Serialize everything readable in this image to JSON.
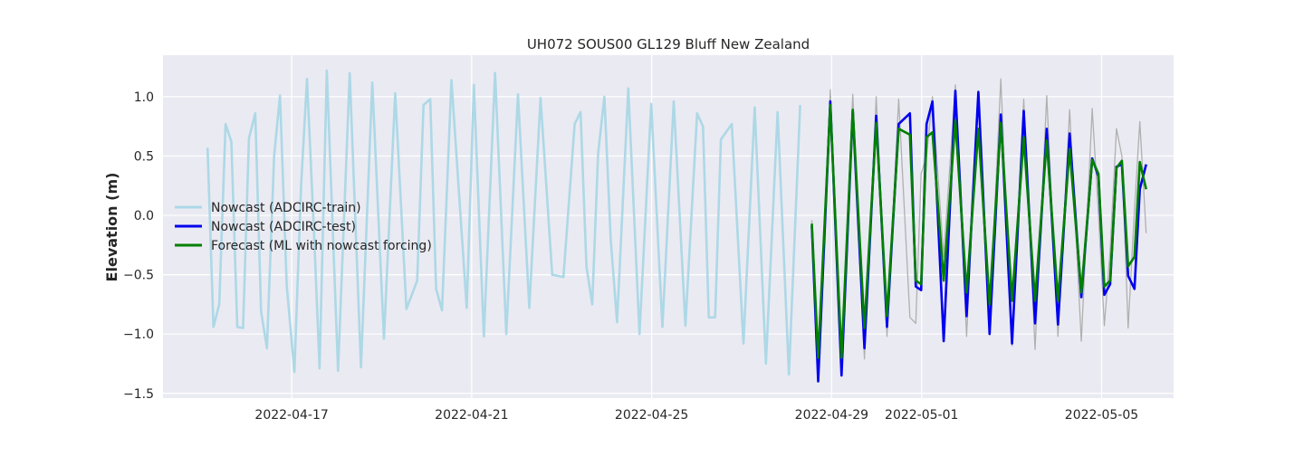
{
  "chart_data": {
    "type": "line",
    "title": "UH072 SOUS00 GL129 Bluff New Zealand",
    "xlabel": "",
    "ylabel": "Elevation (m)",
    "x_unit": "days since 2022-04-16 00:00",
    "xlim": [
      -1.86,
      20.6
    ],
    "ylim": [
      -1.54,
      1.35
    ],
    "x_ticks": [
      {
        "value": 1,
        "label": "2022-04-17"
      },
      {
        "value": 5,
        "label": "2022-04-21"
      },
      {
        "value": 9,
        "label": "2022-04-25"
      },
      {
        "value": 13,
        "label": "2022-04-29"
      },
      {
        "value": 15,
        "label": "2022-05-01"
      },
      {
        "value": 19,
        "label": "2022-05-05"
      }
    ],
    "y_ticks": [
      {
        "value": 1.0,
        "label": "1.0"
      },
      {
        "value": 0.5,
        "label": "0.5"
      },
      {
        "value": 0.0,
        "label": "0.0"
      },
      {
        "value": -0.5,
        "label": "−0.5"
      },
      {
        "value": -1.0,
        "label": "−1.0"
      },
      {
        "value": -1.5,
        "label": "−1.5"
      }
    ],
    "grid": true,
    "legend_position": "center-left",
    "legend": [
      {
        "series": "train",
        "label": "Nowcast (ADCIRC-train)"
      },
      {
        "series": "test",
        "label": "Nowcast (ADCIRC-test)"
      },
      {
        "series": "forecast",
        "label": "Forecast (ML with nowcast forcing)"
      }
    ],
    "series": [
      {
        "name": "Nowcast (ADCIRC-train)",
        "key": "train",
        "color": "#add8e6",
        "x": [
          -0.87,
          -0.74,
          -0.61,
          -0.47,
          -0.34,
          -0.21,
          -0.08,
          0.05,
          0.19,
          0.32,
          0.45,
          0.61,
          0.74,
          0.89,
          1.06,
          1.21,
          1.34,
          1.49,
          1.62,
          1.78,
          2.03,
          2.29,
          2.54,
          2.79,
          3.05,
          3.3,
          3.55,
          3.79,
          3.93,
          4.08,
          4.21,
          4.34,
          4.55,
          4.89,
          5.05,
          5.27,
          5.52,
          5.77,
          6.03,
          6.28,
          6.53,
          6.79,
          7.04,
          7.29,
          7.42,
          7.55,
          7.68,
          7.81,
          7.95,
          8.09,
          8.23,
          8.48,
          8.73,
          8.99,
          9.24,
          9.49,
          9.75,
          10.01,
          10.14,
          10.27,
          10.41,
          10.54,
          10.78,
          11.04,
          11.29,
          11.54,
          11.8,
          12.05,
          12.3
        ],
        "values": [
          0.57,
          -0.94,
          -0.75,
          0.77,
          0.62,
          -0.94,
          -0.95,
          0.65,
          0.86,
          -0.81,
          -1.12,
          0.5,
          1.01,
          -0.59,
          -1.32,
          0.25,
          1.15,
          -0.1,
          -1.29,
          1.22,
          -1.31,
          1.2,
          -1.28,
          1.12,
          -1.04,
          1.03,
          -0.79,
          -0.55,
          0.93,
          0.98,
          -0.62,
          -0.8,
          1.14,
          -0.78,
          1.1,
          -1.02,
          1.2,
          -1.0,
          1.02,
          -0.78,
          0.99,
          -0.5,
          -0.52,
          0.77,
          0.87,
          -0.43,
          -0.75,
          0.52,
          1.0,
          -0.2,
          -0.9,
          1.07,
          -1.0,
          0.94,
          -0.94,
          0.96,
          -0.93,
          0.86,
          0.75,
          -0.86,
          -0.86,
          0.64,
          0.77,
          -1.08,
          0.91,
          -1.25,
          0.87,
          -1.34,
          0.93
        ]
      },
      {
        "name": "Nowcast (ADCIRC-test)",
        "key": "test",
        "color": "#0000ee",
        "x": [
          12.56,
          12.7,
          12.97,
          13.22,
          13.47,
          13.73,
          13.99,
          14.23,
          14.49,
          14.74,
          14.87,
          14.99,
          15.11,
          15.24,
          15.49,
          15.75,
          16.0,
          16.26,
          16.51,
          16.76,
          17.01,
          17.27,
          17.52,
          17.78,
          18.03,
          18.29,
          18.55,
          18.79,
          18.93,
          19.06,
          19.19,
          19.33,
          19.45,
          19.59,
          19.73,
          19.85,
          19.99
        ],
        "values": [
          -0.09,
          -1.4,
          0.96,
          -1.35,
          0.88,
          -1.12,
          0.84,
          -0.94,
          0.77,
          0.86,
          -0.6,
          -0.63,
          0.77,
          0.96,
          -1.06,
          1.05,
          -0.85,
          1.04,
          -1.0,
          0.85,
          -1.08,
          0.88,
          -0.91,
          0.73,
          -0.92,
          0.69,
          -0.69,
          0.48,
          0.33,
          -0.67,
          -0.58,
          0.41,
          0.43,
          -0.51,
          -0.62,
          0.22,
          0.43
        ]
      },
      {
        "name": "Forecast (ML with nowcast forcing)",
        "key": "forecast",
        "color": "#008000",
        "x": [
          12.56,
          12.7,
          12.97,
          13.22,
          13.47,
          13.73,
          13.99,
          14.23,
          14.49,
          14.74,
          14.87,
          14.99,
          15.11,
          15.24,
          15.49,
          15.75,
          16.0,
          16.26,
          16.51,
          16.76,
          17.01,
          17.27,
          17.52,
          17.78,
          18.03,
          18.29,
          18.55,
          18.79,
          18.93,
          19.06,
          19.19,
          19.33,
          19.45,
          19.59,
          19.73,
          19.85,
          19.99
        ],
        "values": [
          -0.07,
          -1.2,
          0.93,
          -1.2,
          0.89,
          -0.95,
          0.78,
          -0.85,
          0.73,
          0.68,
          -0.55,
          -0.58,
          0.66,
          0.7,
          -0.55,
          0.8,
          -0.65,
          0.73,
          -0.75,
          0.78,
          -0.72,
          0.66,
          -0.72,
          0.63,
          -0.72,
          0.56,
          -0.65,
          0.47,
          0.35,
          -0.6,
          -0.55,
          0.4,
          0.46,
          -0.43,
          -0.35,
          0.45,
          0.22
        ]
      },
      {
        "name": "Observed",
        "key": "observed",
        "color": "#b0b0b0",
        "x": [
          12.56,
          12.7,
          12.97,
          13.22,
          13.47,
          13.73,
          13.99,
          14.23,
          14.49,
          14.74,
          14.87,
          14.99,
          15.11,
          15.24,
          15.49,
          15.75,
          16.0,
          16.26,
          16.51,
          16.76,
          17.01,
          17.27,
          17.52,
          17.78,
          18.03,
          18.29,
          18.55,
          18.79,
          18.93,
          19.06,
          19.19,
          19.33,
          19.45,
          19.59,
          19.73,
          19.85,
          19.99
        ],
        "values": [
          -0.04,
          -1.2,
          1.06,
          -1.2,
          1.02,
          -1.21,
          1.0,
          -1.02,
          0.98,
          -0.86,
          -0.91,
          0.35,
          0.5,
          1.0,
          -0.35,
          1.1,
          -1.02,
          1.05,
          -0.88,
          1.15,
          -1.1,
          0.98,
          -1.13,
          1.01,
          -1.02,
          0.89,
          -1.06,
          0.9,
          0.02,
          -0.93,
          -0.3,
          0.73,
          0.5,
          -0.95,
          0.05,
          0.79,
          -0.15
        ]
      }
    ]
  }
}
